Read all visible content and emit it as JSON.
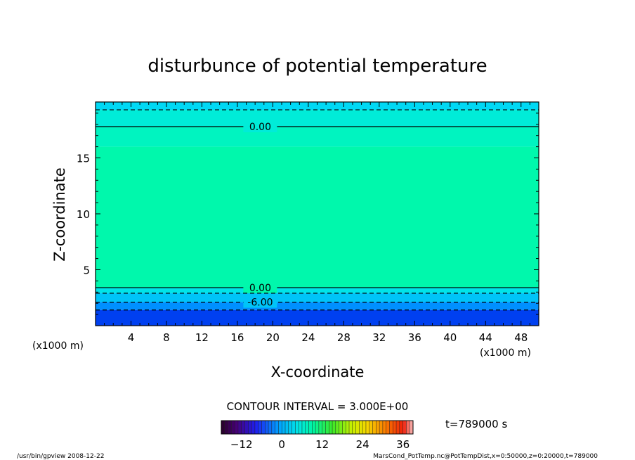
{
  "chart_data": {
    "type": "heatmap",
    "title": "disturbunce of potential temperature",
    "xlabel": "X-coordinate",
    "ylabel": "Z-coordinate",
    "x_unit": "(x1000 m)",
    "y_unit": "(x1000 m)",
    "xlim": [
      0,
      50
    ],
    "ylim": [
      0,
      20
    ],
    "x_ticks": [
      4,
      8,
      12,
      16,
      20,
      24,
      28,
      32,
      36,
      40,
      44,
      48
    ],
    "y_ticks": [
      5,
      10,
      15
    ],
    "contour_interval_text": "CONTOUR INTERVAL = 3.000E+00",
    "contour_lines": [
      {
        "z": 17.8,
        "value": 0,
        "label": "0.00",
        "style": "solid"
      },
      {
        "z": 3.4,
        "value": 0,
        "label": "0.00",
        "style": "solid"
      },
      {
        "z": 2.9,
        "value": -3,
        "label": "",
        "style": "dashed"
      },
      {
        "z": 2.1,
        "value": -6,
        "label": "-6.00",
        "style": "dashed"
      },
      {
        "z": 1.4,
        "value": -9,
        "label": "",
        "style": "dashed"
      },
      {
        "z": 19.3,
        "value": -3,
        "label": "",
        "style": "dashed"
      }
    ],
    "field_bands": [
      {
        "z0": 19.3,
        "z1": 20.0,
        "color": "#00d8f4"
      },
      {
        "z0": 17.8,
        "z1": 19.3,
        "color": "#00ecd8"
      },
      {
        "z0": 16.0,
        "z1": 17.8,
        "color": "#00f4c0"
      },
      {
        "z0": 3.4,
        "z1": 16.0,
        "color": "#00f8ac"
      },
      {
        "z0": 2.9,
        "z1": 3.4,
        "color": "#00e4e8"
      },
      {
        "z0": 2.1,
        "z1": 2.9,
        "color": "#00c4f8"
      },
      {
        "z0": 1.4,
        "z1": 2.1,
        "color": "#0090ff"
      },
      {
        "z0": 0.0,
        "z1": 1.4,
        "color": "#0040f0"
      }
    ],
    "colorbar": {
      "min": -18,
      "max": 39,
      "tick_values": [
        -12,
        0,
        12,
        24,
        36
      ],
      "tick_labels": [
        "−12",
        "0",
        "12",
        "24",
        "36"
      ]
    },
    "time_label": "t=789000 s",
    "footer_left": "/usr/bin/gpview   2008-12-22",
    "footer_right": "MarsCond_PotTemp.nc@PotTempDist,x=0:50000,z=0:20000,t=789000"
  }
}
